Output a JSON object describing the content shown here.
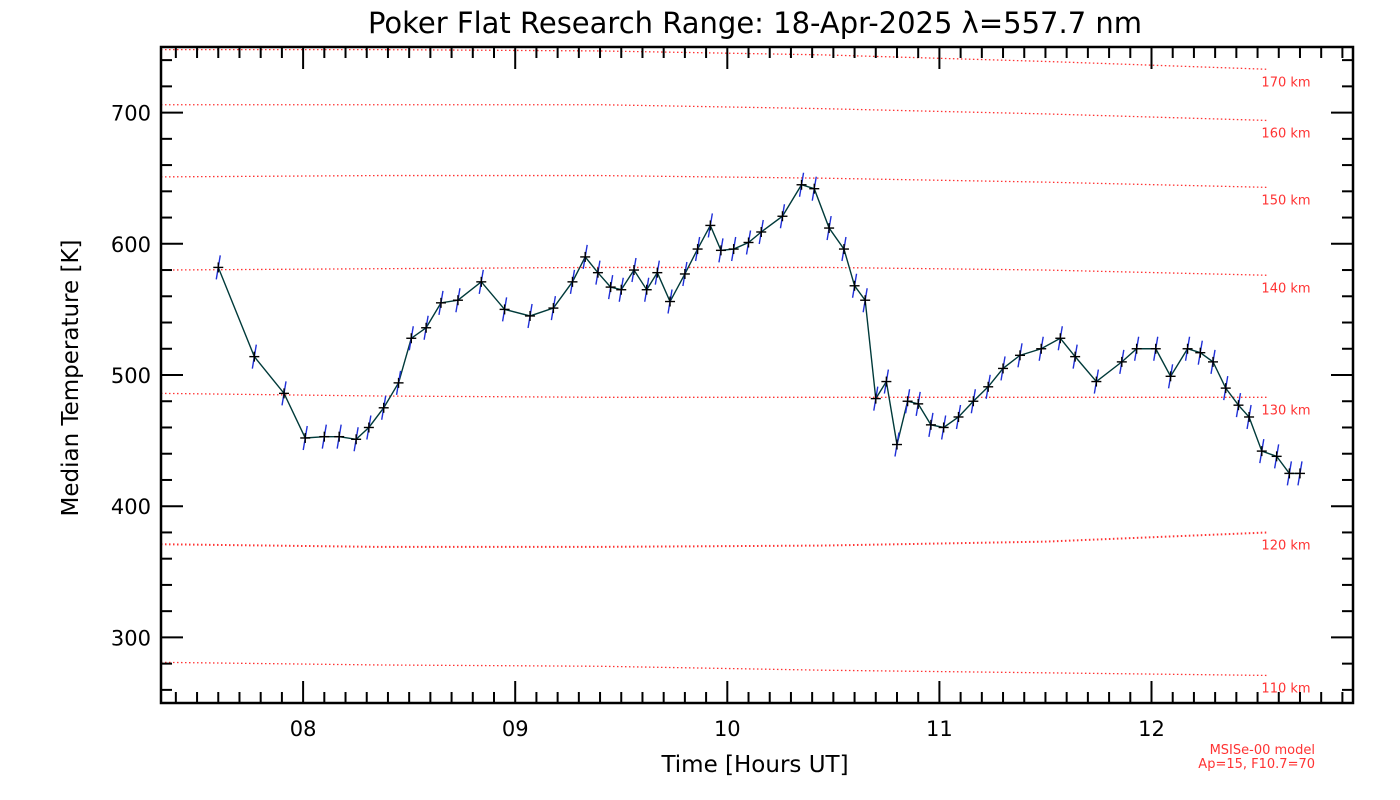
{
  "chart_data": {
    "type": "line",
    "title": "Poker Flat Research Range: 18-Apr-2025 λ=557.7 nm",
    "xlabel": "Time [Hours UT]",
    "ylabel": "Median Temperature [K]",
    "xlim": [
      7.33,
      12.95
    ],
    "ylim": [
      250,
      750
    ],
    "x_ticks": [
      8,
      9,
      10,
      11,
      12
    ],
    "x_tick_labels": [
      "08",
      "09",
      "10",
      "11",
      "12"
    ],
    "y_ticks": [
      300,
      400,
      500,
      600,
      700
    ],
    "y_tick_labels": [
      "300",
      "400",
      "500",
      "600",
      "700"
    ],
    "grid": false,
    "colors": {
      "line": "#003a3a",
      "marker": "#000000",
      "error_bar": "#1f2fd8",
      "model": "#ff3333"
    },
    "series": [
      {
        "x": [
          7.6,
          7.77,
          7.91,
          8.01,
          8.1,
          8.17,
          8.25,
          8.31,
          8.38,
          8.45,
          8.51,
          8.58,
          8.65,
          8.73,
          8.84,
          8.95,
          9.07,
          9.18,
          9.27,
          9.33,
          9.39,
          9.45,
          9.5,
          9.56,
          9.62,
          9.67,
          9.73,
          9.8,
          9.86,
          9.92,
          9.97,
          10.03,
          10.1,
          10.16,
          10.26,
          10.35,
          10.41,
          10.48,
          10.55,
          10.6,
          10.65,
          10.7,
          10.75,
          10.8,
          10.85,
          10.9,
          10.96,
          11.02,
          11.09,
          11.16,
          11.23,
          11.3,
          11.38,
          11.48,
          11.57,
          11.64,
          11.74,
          11.86,
          11.93,
          12.02,
          12.09,
          12.17,
          12.23,
          12.29,
          12.35,
          12.41,
          12.46,
          12.52,
          12.59,
          12.65,
          12.7
        ],
        "y": [
          582,
          514,
          486,
          452,
          453,
          453,
          451,
          460,
          475,
          494,
          528,
          536,
          555,
          557,
          571,
          550,
          545,
          551,
          571,
          590,
          578,
          567,
          565,
          580,
          565,
          578,
          556,
          577,
          596,
          614,
          595,
          596,
          601,
          609,
          621,
          645,
          642,
          612,
          596,
          568,
          557,
          482,
          495,
          447,
          480,
          478,
          462,
          460,
          468,
          480,
          491,
          505,
          515,
          520,
          528,
          514,
          495,
          510,
          520,
          520,
          499,
          520,
          517,
          510,
          490,
          477,
          468,
          442,
          438,
          425,
          425
        ]
      }
    ],
    "model_lines": [
      {
        "label": "110 km",
        "values": [
          281,
          279,
          278,
          275,
          273,
          271
        ]
      },
      {
        "label": "120 km",
        "values": [
          371,
          369,
          369,
          370,
          373,
          380
        ]
      },
      {
        "label": "130 km",
        "values": [
          486,
          484,
          483,
          483,
          483,
          483
        ]
      },
      {
        "label": "140 km",
        "values": [
          580,
          581,
          582,
          582,
          580,
          576
        ]
      },
      {
        "label": "150 km",
        "values": [
          651,
          652,
          652,
          650,
          647,
          643
        ]
      },
      {
        "label": "160 km",
        "values": [
          706,
          706,
          706,
          703,
          699,
          694
        ]
      },
      {
        "label": "170 km",
        "values": [
          748,
          748,
          747,
          744,
          739,
          733
        ]
      }
    ],
    "model_x": [
      7.33,
      8.35,
      9.4,
      10.45,
      11.5,
      12.55
    ],
    "model_note": [
      "MSISe-00 model",
      "Ap=15, F10.7=70"
    ]
  }
}
